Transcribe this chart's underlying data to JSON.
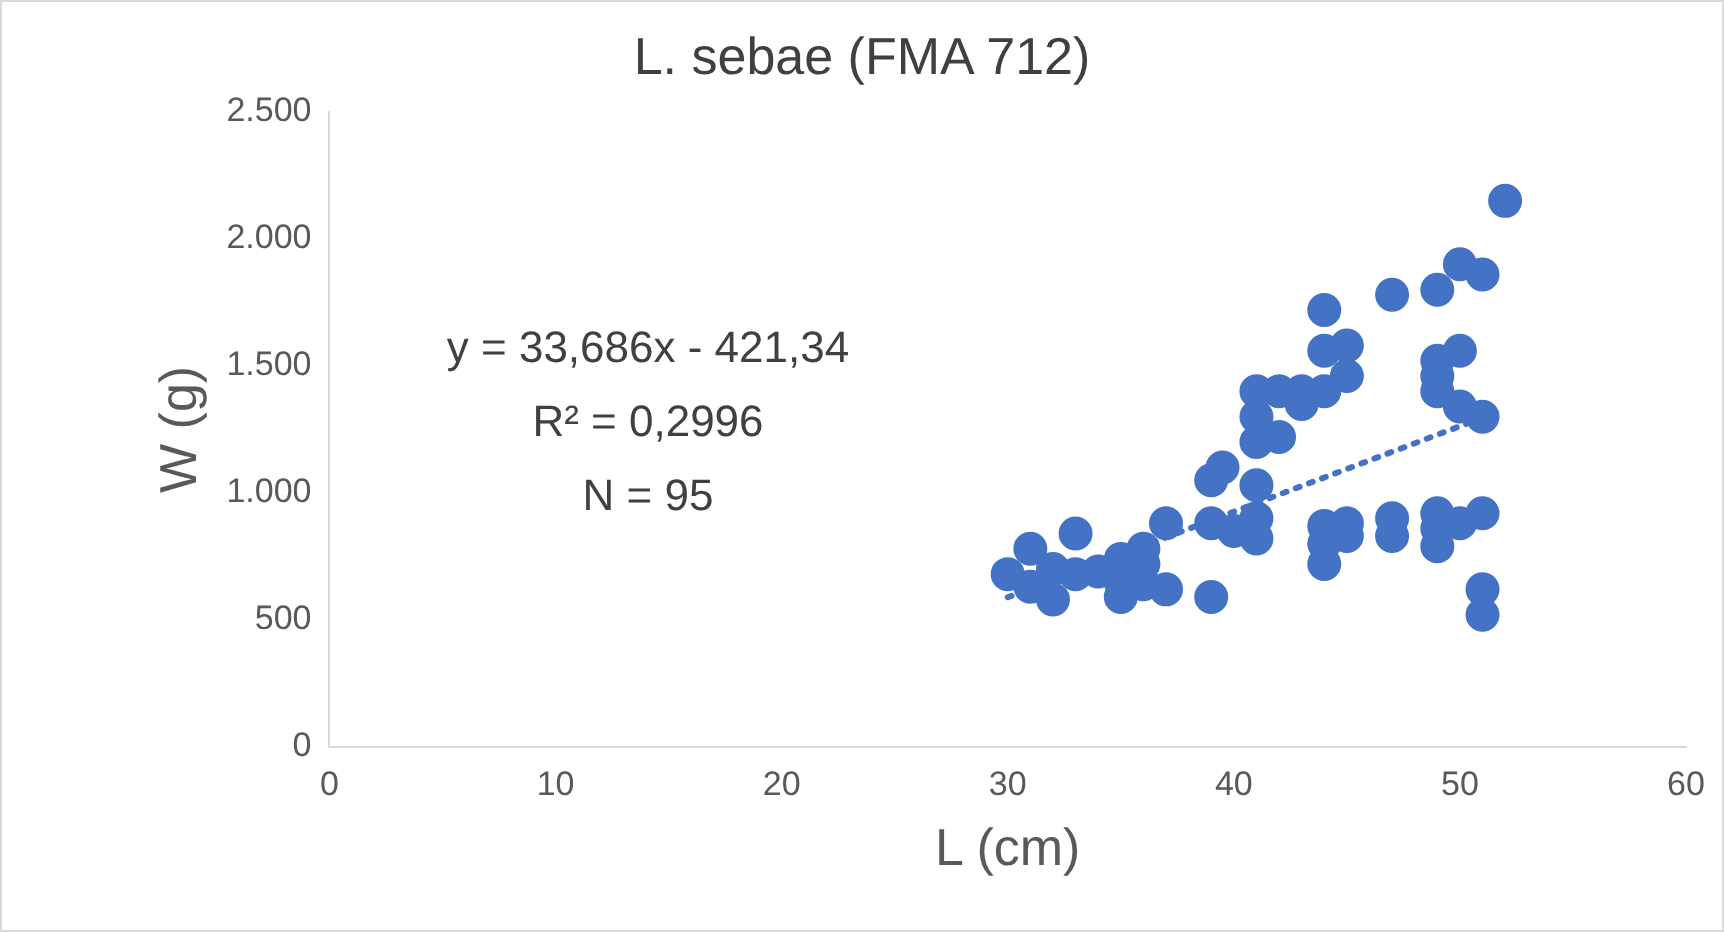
{
  "chart_data": {
    "type": "scatter",
    "title": "L. sebae (FMA 712)",
    "xlabel": "L (cm)",
    "ylabel": "W (g)",
    "annotations": [
      "y = 33,686x - 421,34",
      "R² = 0,2996",
      "N = 95"
    ],
    "xlim": [
      0,
      60
    ],
    "xticks": [
      0,
      10,
      20,
      30,
      40,
      50,
      60
    ],
    "ylim": [
      0,
      2500
    ],
    "yticks": [
      0,
      500,
      {
        "value": 1000,
        "label": "1.000"
      },
      {
        "value": 1500,
        "label": "1.500"
      },
      {
        "value": 2000,
        "label": "2.000"
      },
      {
        "value": 2500,
        "label": "2.500"
      }
    ],
    "grid": false,
    "legend": false,
    "series": [
      {
        "color": "#4472c4",
        "marker": "circle",
        "x": [
          30,
          31,
          31,
          32,
          32,
          33,
          33,
          34,
          35,
          35,
          35,
          36,
          36,
          36,
          37,
          37,
          39,
          39,
          39,
          39.5,
          40,
          41,
          41,
          41,
          41,
          41,
          41,
          42,
          42,
          43,
          43,
          44,
          44,
          44,
          44,
          44,
          44,
          45,
          45,
          45,
          45,
          47,
          47,
          47,
          49,
          49,
          49,
          49,
          49,
          49,
          49,
          50,
          50,
          50,
          50,
          51,
          51,
          51,
          51,
          51,
          52
        ],
        "values": [
          680,
          780,
          630,
          700,
          580,
          840,
          680,
          690,
          740,
          590,
          650,
          780,
          720,
          640,
          880,
          620,
          1050,
          880,
          590,
          1100,
          850,
          1400,
          1300,
          1200,
          1030,
          900,
          820,
          1400,
          1220,
          1400,
          1350,
          1720,
          1560,
          1400,
          870,
          800,
          720,
          1580,
          1460,
          880,
          830,
          1780,
          900,
          830,
          1800,
          1520,
          1460,
          1400,
          920,
          860,
          790,
          1900,
          1560,
          1340,
          880,
          1860,
          1300,
          920,
          620,
          520,
          2150
        ]
      },
      {
        "type": "line",
        "color": "#4472c4",
        "line_style": "dotted",
        "marker": "none",
        "x": [
          30,
          52
        ],
        "values": [
          589,
          1330
        ]
      }
    ]
  }
}
